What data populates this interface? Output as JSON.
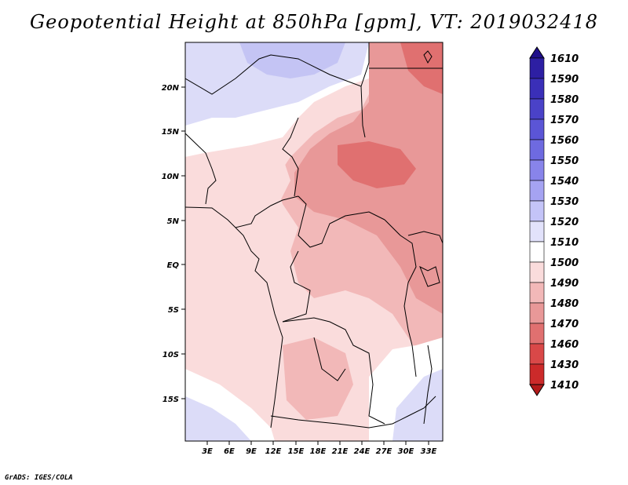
{
  "title": "Geopotential Height at 850hPa [gpm], VT: 2019032418",
  "credit": "GrADS: IGES/COLA",
  "colors": {
    "band_1410_1430": "#b31a1a",
    "band_1430_1460": "#cc2a2a",
    "band_1460_1470": "#d94848",
    "band_1470_1480": "#e07070",
    "band_1480_1490": "#e89898",
    "band_1490_1500": "#f2b8b8",
    "band_1500_1510": "#fadcdc",
    "band_1510_1520": "#ffffff",
    "band_1520_1530": "#dcdcf8",
    "band_1530_1540": "#c4c4f4"
  },
  "map": {
    "lat_labels": [
      "20N",
      "15N",
      "10N",
      "5N",
      "EQ",
      "5S",
      "10S",
      "15S"
    ],
    "lon_labels": [
      "3E",
      "6E",
      "9E",
      "12E",
      "15E",
      "18E",
      "21E",
      "24E",
      "27E",
      "30E",
      "33E"
    ]
  },
  "colorbar": {
    "levels": [
      "1610",
      "1590",
      "1580",
      "1570",
      "1560",
      "1550",
      "1540",
      "1530",
      "1520",
      "1510",
      "1500",
      "1490",
      "1480",
      "1470",
      "1460",
      "1430",
      "1410"
    ],
    "colors": [
      "#1f0f8a",
      "#2d1fa3",
      "#3a2fb8",
      "#4a42c8",
      "#5b55d6",
      "#6e6ae0",
      "#8884ea",
      "#a5a3f2",
      "#c4c4f8",
      "#e2e2fb",
      "#ffffff",
      "#fadcdc",
      "#f2b8b8",
      "#e89898",
      "#e07070",
      "#d94848",
      "#cc2a2a",
      "#b31a1a"
    ]
  }
}
